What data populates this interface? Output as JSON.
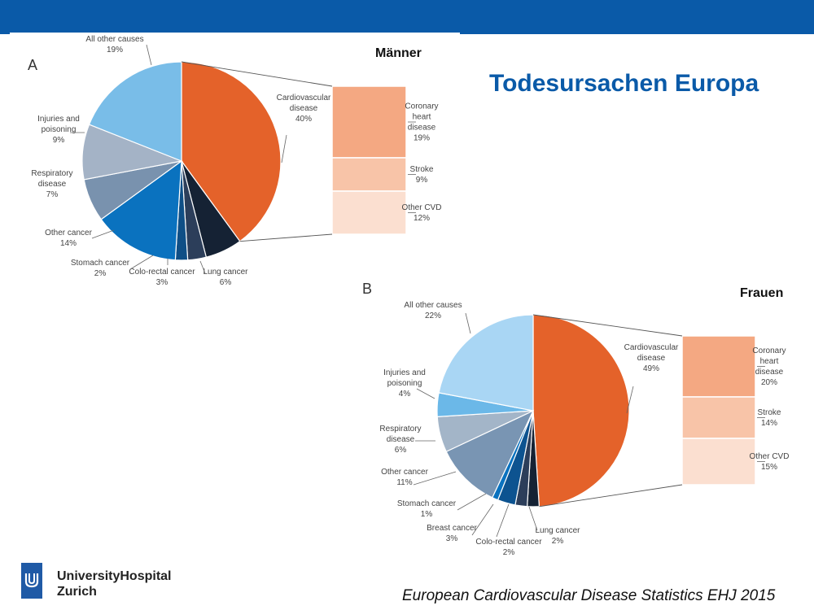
{
  "slide_title": "Todesursachen Europa",
  "citation": "European Cardiovascular Disease Statistics EHJ 2015",
  "logo": {
    "line1": "UniversityHospital",
    "line2": "Zurich",
    "icon": "university-hospital-logo-icon"
  },
  "colors": {
    "header_bar": "#0a5aa8",
    "title": "#0a5aa8"
  },
  "chart_data": [
    {
      "type": "pie",
      "panel": "A",
      "title": "Männer",
      "slices": [
        {
          "label": "Cardiovascular disease",
          "value": 40,
          "text": "40%",
          "color": "#e4622a"
        },
        {
          "label": "Lung cancer",
          "value": 6,
          "text": "6%",
          "color": "#152234"
        },
        {
          "label": "Colo-rectal cancer",
          "value": 3,
          "text": "3%",
          "color": "#2c3e5a"
        },
        {
          "label": "Stomach cancer",
          "value": 2,
          "text": "2%",
          "color": "#0f4f86"
        },
        {
          "label": "Other cancer",
          "value": 14,
          "text": "14%",
          "color": "#0a72bf"
        },
        {
          "label": "Respiratory disease",
          "value": 7,
          "text": "7%",
          "color": "#7992ae"
        },
        {
          "label": "Injuries and poisoning",
          "value": 9,
          "text": "9%",
          "color": "#a4b3c6"
        },
        {
          "label": "All other causes",
          "value": 19,
          "text": "19%",
          "color": "#79bde8"
        }
      ],
      "breakdown": [
        {
          "label": "Coronary heart disease",
          "value": 19,
          "text": "19%",
          "color": "#f4a882"
        },
        {
          "label": "Stroke",
          "value": 9,
          "text": "9%",
          "color": "#f8c4a8"
        },
        {
          "label": "Other CVD",
          "value": 12,
          "text": "12%",
          "color": "#fbdfd0"
        }
      ]
    },
    {
      "type": "pie",
      "panel": "B",
      "title": "Frauen",
      "slices": [
        {
          "label": "Cardiovascular disease",
          "value": 49,
          "text": "49%",
          "color": "#e4622a"
        },
        {
          "label": "Lung cancer",
          "value": 2,
          "text": "2%",
          "color": "#152234"
        },
        {
          "label": "Colo-rectal cancer",
          "value": 2,
          "text": "2%",
          "color": "#2c3e5a"
        },
        {
          "label": "Breast cancer",
          "value": 3,
          "text": "3%",
          "color": "#0d5390"
        },
        {
          "label": "Stomach cancer",
          "value": 1,
          "text": "1%",
          "color": "#0a72bf"
        },
        {
          "label": "Other cancer",
          "value": 11,
          "text": "11%",
          "color": "#7995b3"
        },
        {
          "label": "Respiratory disease",
          "value": 6,
          "text": "6%",
          "color": "#a3b5c8"
        },
        {
          "label": "Injuries and poisoning",
          "value": 4,
          "text": "4%",
          "color": "#6bb8e8"
        },
        {
          "label": "All other causes",
          "value": 22,
          "text": "22%",
          "color": "#a9d6f4"
        }
      ],
      "breakdown": [
        {
          "label": "Coronary heart disease",
          "value": 20,
          "text": "20%",
          "color": "#f4a882"
        },
        {
          "label": "Stroke",
          "value": 14,
          "text": "14%",
          "color": "#f8c4a8"
        },
        {
          "label": "Other CVD",
          "value": 15,
          "text": "15%",
          "color": "#fbdfd0"
        }
      ]
    }
  ]
}
